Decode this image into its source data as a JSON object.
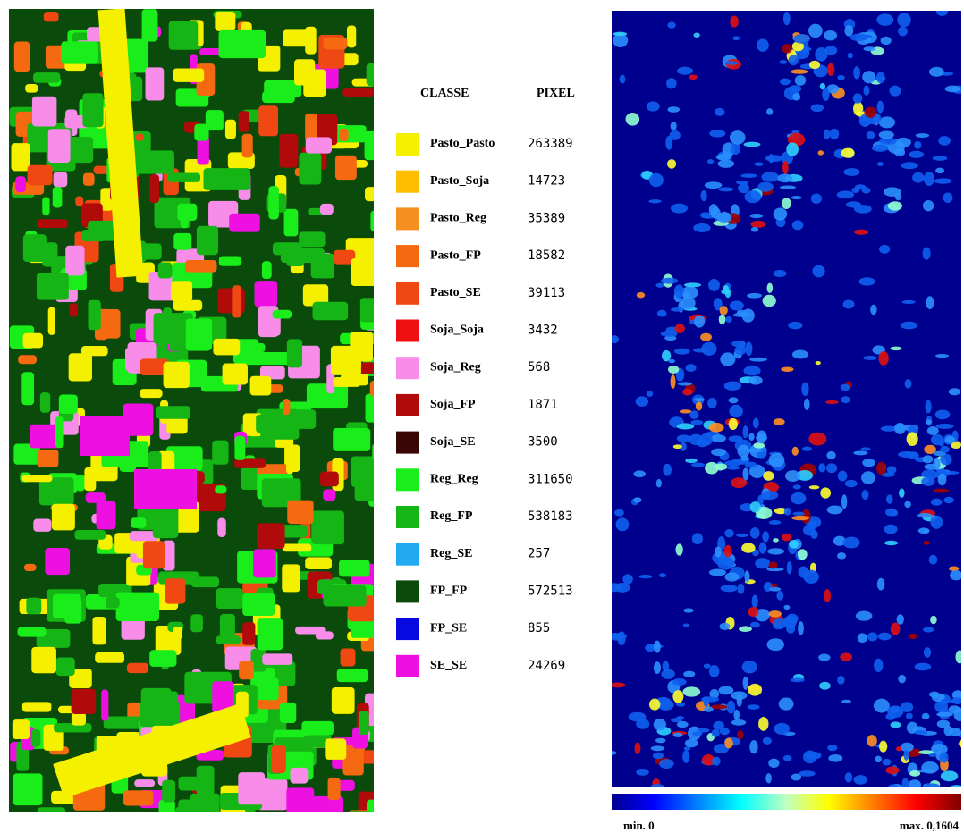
{
  "legend": {
    "headers": [
      "CLASSE",
      "PIXEL"
    ],
    "rows": [
      {
        "label": "Pasto_Pasto",
        "pixels": 263389,
        "color": "#f5ef00"
      },
      {
        "label": "Pasto_Soja",
        "pixels": 14723,
        "color": "#ffbf00"
      },
      {
        "label": "Pasto_Reg",
        "pixels": 35389,
        "color": "#f58f1f"
      },
      {
        "label": "Pasto_FP",
        "pixels": 18582,
        "color": "#f56a10"
      },
      {
        "label": "Pasto_SE",
        "pixels": 39113,
        "color": "#f04812"
      },
      {
        "label": "Soja_Soja",
        "pixels": 3432,
        "color": "#ee1010"
      },
      {
        "label": "Soja_Reg",
        "pixels": 568,
        "color": "#f78ce9"
      },
      {
        "label": "Soja_FP",
        "pixels": 1871,
        "color": "#b00a0a"
      },
      {
        "label": "Soja_SE",
        "pixels": 3500,
        "color": "#3a0505"
      },
      {
        "label": "Reg_Reg",
        "pixels": 311650,
        "color": "#1aee1a"
      },
      {
        "label": "Reg_FP",
        "pixels": 538183,
        "color": "#16b516"
      },
      {
        "label": "Reg_SE",
        "pixels": 257,
        "color": "#22aaf0"
      },
      {
        "label": "FP_FP",
        "pixels": 572513,
        "color": "#0a4a0a"
      },
      {
        "label": "FP_SE",
        "pixels": 855,
        "color": "#0808e0"
      },
      {
        "label": "SE_SE",
        "pixels": 24269,
        "color": "#ee10e0"
      }
    ]
  },
  "colorbar": {
    "min_label": "min. 0",
    "max_label": "max. 0,1604"
  }
}
